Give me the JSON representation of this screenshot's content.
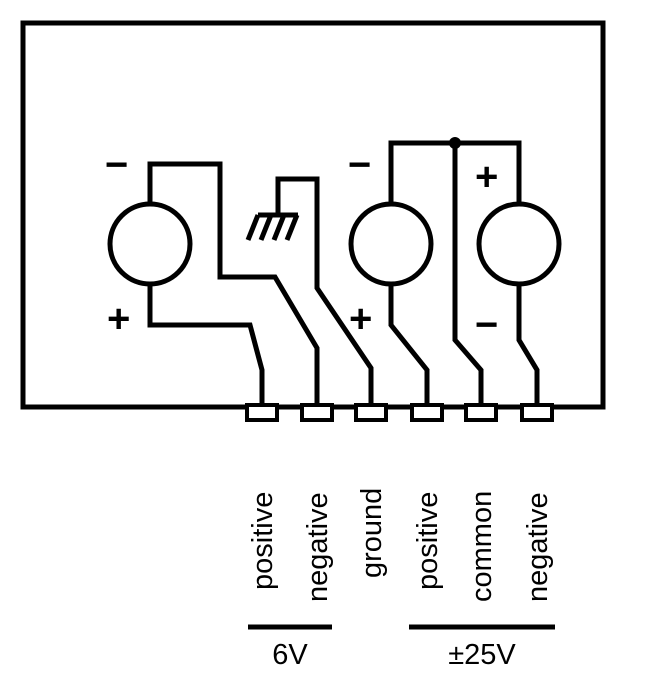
{
  "terminals": [
    {
      "id": "pos6",
      "label": "positive"
    },
    {
      "id": "neg6",
      "label": "negative"
    },
    {
      "id": "gnd",
      "label": "ground"
    },
    {
      "id": "pos25",
      "label": "positive"
    },
    {
      "id": "com25",
      "label": "common"
    },
    {
      "id": "neg25",
      "label": "negative"
    }
  ],
  "groups": [
    {
      "id": "six",
      "label": "6V"
    },
    {
      "id": "twentyfive",
      "label": "±25V"
    }
  ],
  "sources": [
    {
      "id": "src-6v",
      "top_sign": "−",
      "bottom_sign": "+"
    },
    {
      "id": "src-25v-positive",
      "top_sign": "−",
      "bottom_sign": "+"
    },
    {
      "id": "src-25v-negative",
      "top_sign": "+",
      "bottom_sign": "−"
    }
  ],
  "symbols": {
    "ground": "ground-symbol-icon"
  }
}
